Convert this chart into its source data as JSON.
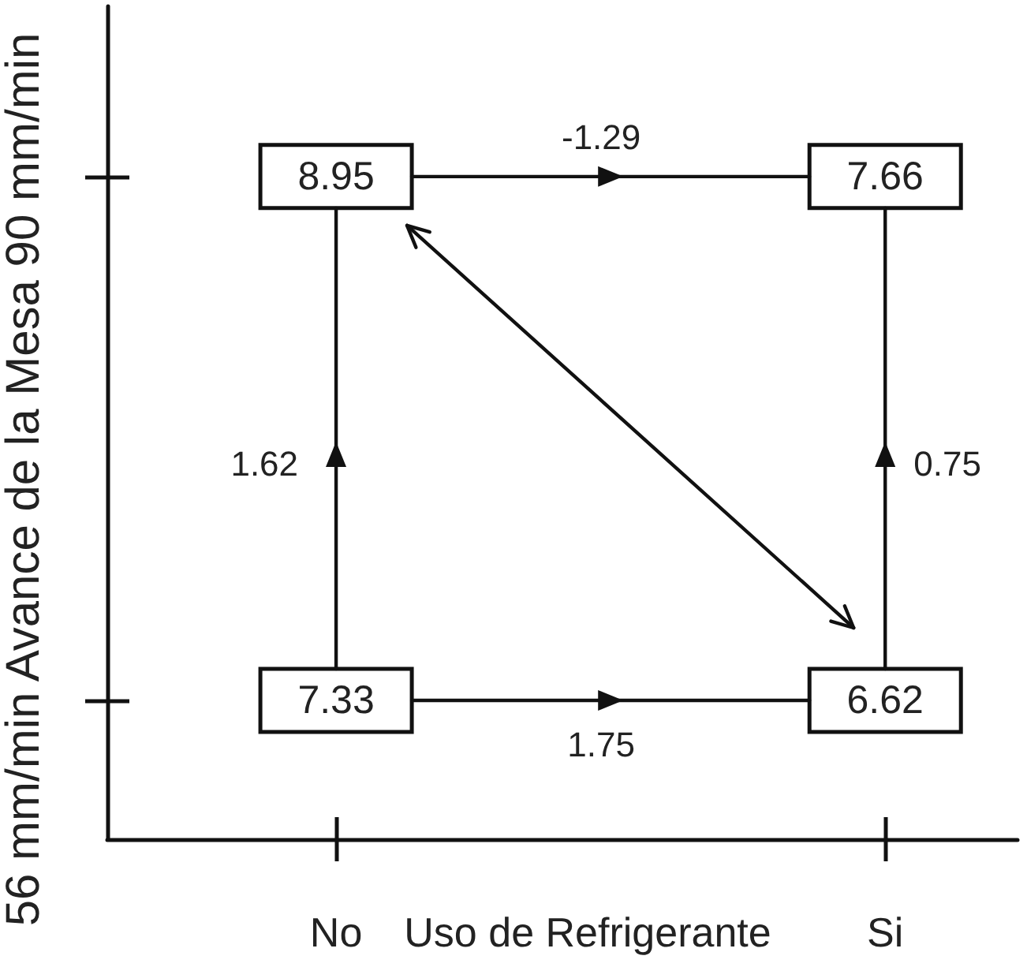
{
  "chart_data": {
    "type": "other",
    "xlabel": "Uso de Refrigerante",
    "ylabel": "56 mm/min Avance de la Mesa 90 mm/min",
    "categories": [
      "No",
      "Si"
    ],
    "series": [
      {
        "values": [
          8.95,
          7.66
        ]
      },
      {
        "values": [
          7.33,
          6.62
        ]
      }
    ],
    "data_labels": true,
    "annotations": [
      "-1.29",
      "1.75",
      "1.62",
      "0.75"
    ]
  }
}
